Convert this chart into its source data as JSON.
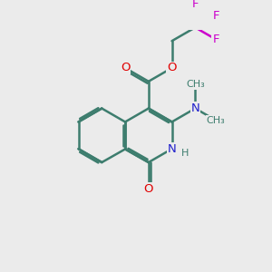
{
  "bg_color": "#ebebeb",
  "bond_color": "#3d7d6e",
  "bond_width": 1.8,
  "atom_colors": {
    "O": "#e00000",
    "N": "#2020cc",
    "F": "#cc00cc",
    "C": "#3d7d6e",
    "H": "#3d7d6e"
  },
  "font_size": 9.5,
  "font_size_small": 8.0
}
